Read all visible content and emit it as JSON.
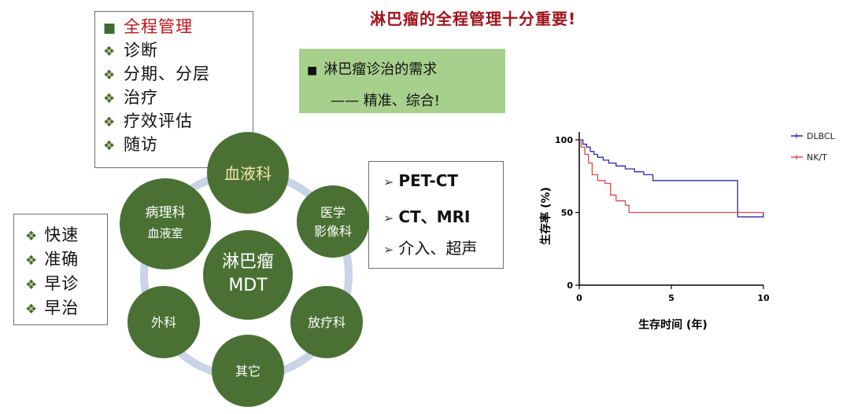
{
  "title": "淋巴瘤的全程管理十分重要!",
  "management": {
    "head": "全程管理",
    "items": [
      "诊断",
      "分期、分层",
      "治疗",
      "疗效评估",
      "随访"
    ]
  },
  "needs": {
    "line1": "淋巴瘤诊治的需求",
    "line2": "—— 精准、综合!"
  },
  "imaging": {
    "items": [
      "PET-CT",
      "CT、MRI",
      "介入、超声"
    ]
  },
  "goals": {
    "items": [
      "快速",
      "准确",
      "早诊",
      "早治"
    ]
  },
  "mdt": {
    "center_line1": "淋巴瘤",
    "center_line2": "MDT",
    "departments": [
      {
        "line1": "血液科",
        "line2": ""
      },
      {
        "line1": "医学",
        "line2": "影像科"
      },
      {
        "line1": "放疗科",
        "line2": ""
      },
      {
        "line1": "其它",
        "line2": ""
      },
      {
        "line1": "外科",
        "line2": ""
      },
      {
        "line1": "病理科",
        "line2": "血液室"
      }
    ],
    "colors": {
      "circle": "#4a7133",
      "ring": "#c9d4e6"
    }
  },
  "chart_data": {
    "type": "line",
    "subtype": "step (Kaplan-Meier survival)",
    "xlabel": "生存时间 (年)",
    "ylabel": "生存率 (%)",
    "xticks": [
      "0",
      "5",
      "10"
    ],
    "yticks": [
      "0",
      "50",
      "100"
    ],
    "xlim": [
      0,
      10
    ],
    "ylim": [
      0,
      100
    ],
    "legend_position": "top-right",
    "series": [
      {
        "name": "DLBCL",
        "color": "#2a2aa8",
        "x": [
          0,
          0.2,
          0.4,
          0.6,
          0.8,
          1.0,
          1.3,
          1.6,
          2.0,
          2.5,
          3.0,
          3.5,
          4.0,
          8.6,
          10.0
        ],
        "y": [
          100,
          97,
          95,
          92,
          90,
          88,
          86,
          84,
          82,
          80,
          78,
          76,
          72,
          47,
          50
        ]
      },
      {
        "name": "NK/T",
        "color": "#d94b4b",
        "x": [
          0,
          0.1,
          0.3,
          0.5,
          0.7,
          1.0,
          1.4,
          1.7,
          2.0,
          2.5,
          2.7,
          10.0
        ],
        "y": [
          100,
          95,
          90,
          84,
          76,
          72,
          70,
          62,
          58,
          55,
          50,
          50
        ]
      }
    ]
  }
}
